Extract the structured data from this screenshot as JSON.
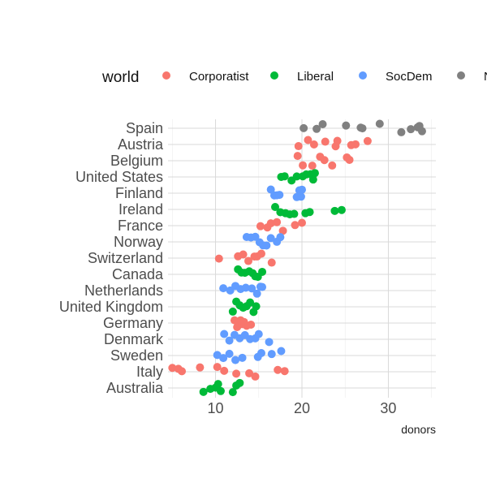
{
  "chart_data": {
    "type": "scatter",
    "title": "",
    "xlabel": "donors",
    "ylabel": "",
    "xlim": [
      4.5,
      35.5
    ],
    "xticks": [
      "10",
      "20",
      "30"
    ],
    "xtick_values": [
      10,
      20,
      30
    ],
    "x_minor_values": [
      5,
      15,
      25,
      35
    ],
    "grid": true,
    "legend": {
      "title": "world",
      "position": "top",
      "entries": [
        {
          "name": "Corporatist",
          "color": "#F8766D"
        },
        {
          "name": "Liberal",
          "color": "#00BA38"
        },
        {
          "name": "SocDem",
          "color": "#619CFF"
        },
        {
          "name": "NA",
          "color": "#808080"
        }
      ]
    },
    "categories": [
      "Spain",
      "Austria",
      "Belgium",
      "United States",
      "Finland",
      "Ireland",
      "France",
      "Norway",
      "Switzerland",
      "Canada",
      "Netherlands",
      "United Kingdom",
      "Germany",
      "Denmark",
      "Sweden",
      "Italy",
      "Australia"
    ],
    "series": [
      {
        "name": "NA",
        "color": "#808080",
        "points": [
          {
            "country": "Spain",
            "donors": [
              20.2,
              21.7,
              22.4,
              25.1,
              26.8,
              27.0,
              29.0,
              31.5,
              32.6,
              33.4,
              33.6,
              33.9
            ]
          }
        ]
      },
      {
        "name": "Corporatist",
        "color": "#F8766D",
        "points": [
          {
            "country": "Austria",
            "donors": [
              19.6,
              20.7,
              21.4,
              22.7,
              23.9,
              24.1,
              25.7,
              26.2,
              27.6
            ]
          },
          {
            "country": "Belgium",
            "donors": [
              19.5,
              20.1,
              21.2,
              22.1,
              22.6,
              23.5,
              25.2,
              25.5
            ]
          },
          {
            "country": "France",
            "donors": [
              15.2,
              16.0,
              16.4,
              17.1,
              17.8,
              19.2,
              20.0
            ]
          },
          {
            "country": "Switzerland",
            "donors": [
              10.4,
              12.6,
              13.2,
              13.8,
              14.5,
              14.8,
              15.3,
              16.5
            ]
          },
          {
            "country": "Germany",
            "donors": [
              12.2,
              12.5,
              12.7,
              12.9,
              13.1,
              13.3,
              13.6,
              14.1
            ]
          },
          {
            "country": "Italy",
            "donors": [
              5.0,
              5.7,
              6.1,
              8.2,
              10.2,
              11.0,
              12.4,
              13.9,
              14.6,
              17.2,
              18.0
            ]
          }
        ]
      },
      {
        "name": "Liberal",
        "color": "#00BA38",
        "points": [
          {
            "country": "United States",
            "donors": [
              17.6,
              18.0,
              18.8,
              19.4,
              20.1,
              20.5,
              21.0,
              21.3,
              21.5
            ]
          },
          {
            "country": "Ireland",
            "donors": [
              16.9,
              17.5,
              18.1,
              18.6,
              19.1,
              20.4,
              20.9,
              23.8,
              24.6
            ]
          },
          {
            "country": "Canada",
            "donors": [
              12.6,
              13.0,
              13.4,
              13.9,
              14.3,
              14.6,
              14.9,
              15.4
            ]
          },
          {
            "country": "United Kingdom",
            "donors": [
              12.0,
              12.4,
              12.8,
              13.2,
              13.6,
              14.0,
              14.4,
              14.7
            ]
          },
          {
            "country": "Australia",
            "donors": [
              8.6,
              9.4,
              10.0,
              10.3,
              10.6,
              12.0,
              12.4,
              12.8
            ]
          }
        ]
      },
      {
        "name": "SocDem",
        "color": "#619CFF",
        "points": [
          {
            "country": "Finland",
            "donors": [
              16.4,
              16.8,
              17.1,
              17.4,
              19.4,
              19.7,
              19.9,
              20.0
            ]
          },
          {
            "country": "Norway",
            "donors": [
              13.6,
              14.1,
              14.6,
              15.1,
              15.5,
              15.9,
              16.4,
              17.1,
              17.5
            ]
          },
          {
            "country": "Netherlands",
            "donors": [
              10.9,
              11.7,
              12.3,
              12.9,
              13.5,
              14.2,
              14.8,
              15.2,
              15.4
            ]
          },
          {
            "country": "Denmark",
            "donors": [
              11.0,
              11.6,
              12.2,
              12.8,
              13.4,
              14.0,
              14.6,
              15.0,
              16.2
            ]
          },
          {
            "country": "Sweden",
            "donors": [
              10.2,
              10.9,
              11.6,
              12.3,
              13.1,
              14.9,
              15.3,
              16.5,
              17.6
            ]
          }
        ]
      }
    ]
  }
}
